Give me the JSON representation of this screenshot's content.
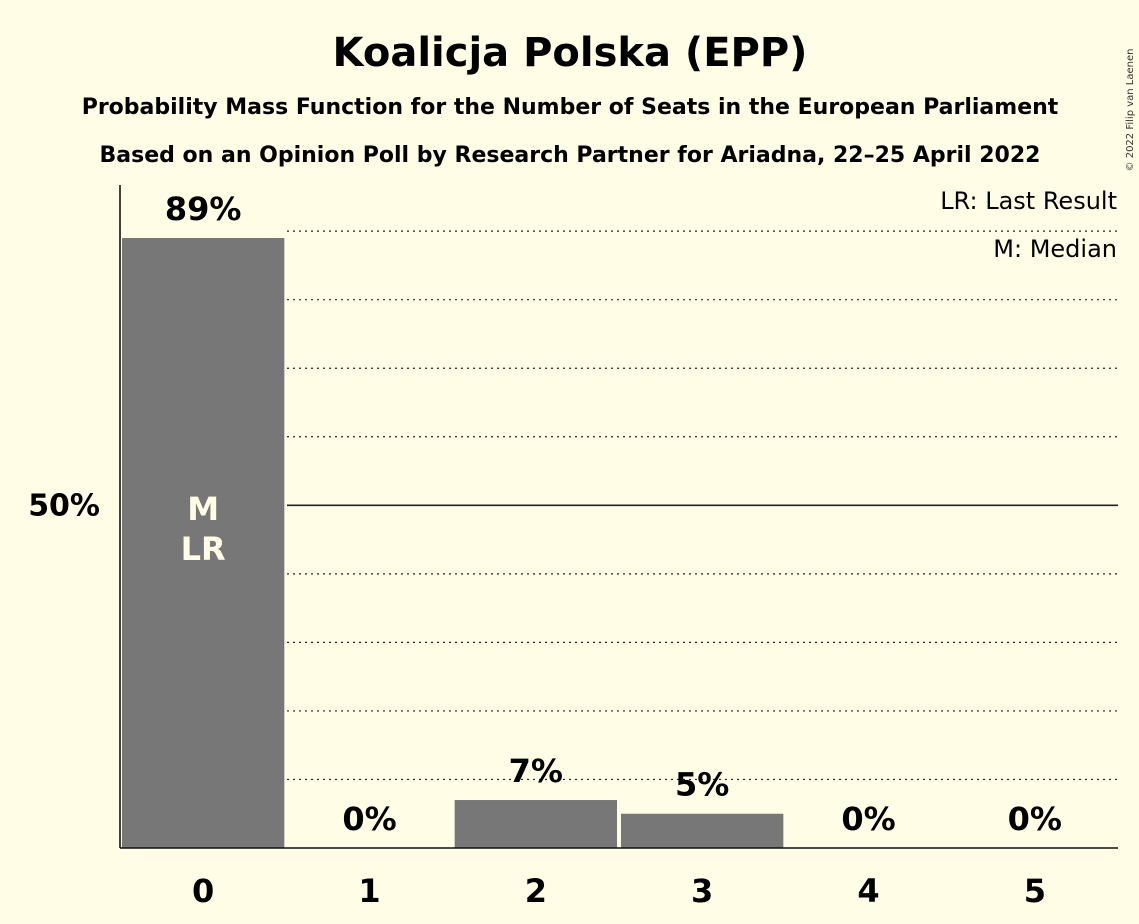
{
  "chart_data": {
    "type": "bar",
    "title": "Koalicja Polska (EPP)",
    "subtitle": "Probability Mass Function for the Number of Seats in the European Parliament",
    "subtitle2": "Based on an Opinion Poll by Research Partner for Ariadna, 22–25 April 2022",
    "categories": [
      "0",
      "1",
      "2",
      "3",
      "4",
      "5"
    ],
    "values": [
      89,
      0,
      7,
      5,
      0,
      0
    ],
    "value_labels": [
      "89%",
      "0%",
      "7%",
      "5%",
      "0%",
      "0%"
    ],
    "bar_annotations": [
      [
        "M",
        "LR"
      ],
      [],
      [],
      [],
      [],
      []
    ],
    "ylim": [
      0,
      100
    ],
    "y_ticks": [
      {
        "value": 50,
        "label": "50%"
      }
    ],
    "grid_dotted_every": 10,
    "legend": [
      "LR: Last Result",
      "M: Median"
    ],
    "legend_position": "top-right",
    "bar_color": "#777777",
    "copyright": "© 2022 Filip van Laenen"
  }
}
